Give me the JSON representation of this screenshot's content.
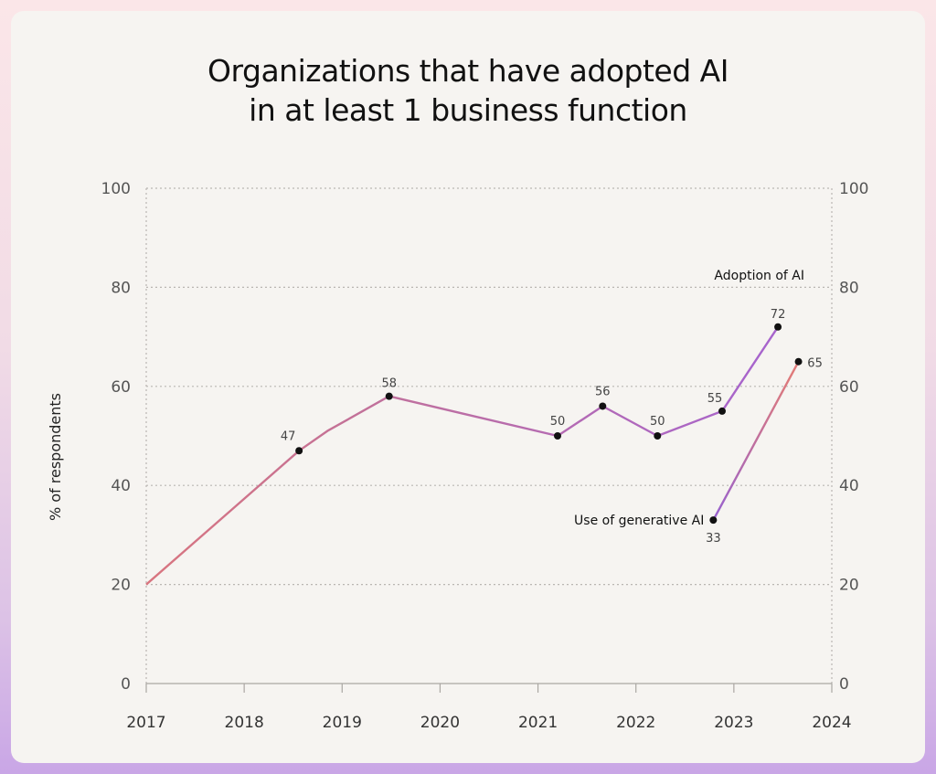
{
  "chart_data": {
    "type": "line",
    "title_lines": [
      "Organizations that have adopted AI",
      "in at least 1 business function"
    ],
    "ylabel": "% of respondents",
    "ylim": [
      0,
      100
    ],
    "yticks": [
      0,
      20,
      40,
      60,
      80,
      100
    ],
    "xlim": [
      2017,
      2024
    ],
    "xticks": [
      "2017",
      "2018",
      "2019",
      "2020",
      "2021",
      "2022",
      "2023",
      "2024"
    ],
    "grid": true,
    "series": [
      {
        "name": "Adoption of AI",
        "color": "#b570c0",
        "points": [
          {
            "x": 2017.0,
            "y": 20,
            "label": ""
          },
          {
            "x": 2018.56,
            "y": 47,
            "label": "47"
          },
          {
            "x": 2018.85,
            "y": 51,
            "label": ""
          },
          {
            "x": 2019.48,
            "y": 58,
            "label": "58"
          },
          {
            "x": 2021.2,
            "y": 50,
            "label": "50"
          },
          {
            "x": 2021.66,
            "y": 56,
            "label": "56"
          },
          {
            "x": 2022.22,
            "y": 50,
            "label": "50"
          },
          {
            "x": 2022.88,
            "y": 55,
            "label": "55"
          },
          {
            "x": 2023.45,
            "y": 72,
            "label": "72"
          }
        ]
      },
      {
        "name": "Use of generative AI",
        "color": "#8e5ec8",
        "points": [
          {
            "x": 2022.79,
            "y": 33,
            "label": "33"
          },
          {
            "x": 2023.66,
            "y": 65,
            "label": "65"
          }
        ]
      }
    ]
  }
}
